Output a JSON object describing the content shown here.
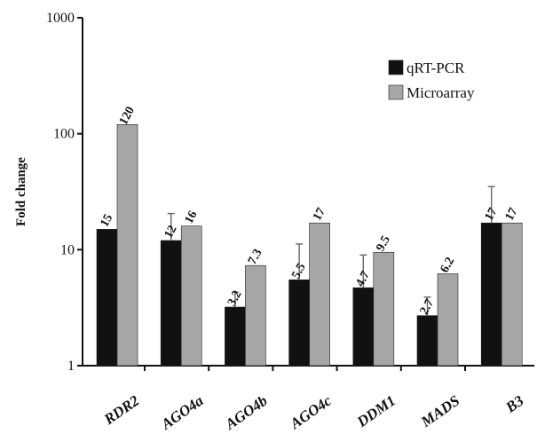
{
  "chart_data": {
    "type": "bar",
    "ylabel": "Fold change",
    "xlabel": "",
    "yscale": "log",
    "ylim": [
      1,
      1000
    ],
    "yticks": [
      1,
      10,
      100,
      1000
    ],
    "ytick_labels": [
      "1",
      "10",
      "100",
      "1000"
    ],
    "legend_position": "top-right",
    "categories": [
      "RDR2",
      "AGO4a",
      "AGO4b",
      "AGO4c",
      "DDM1",
      "MADS",
      "B3"
    ],
    "series": [
      {
        "name": "qRT-PCR",
        "color": "#111111",
        "values": [
          15,
          12,
          3.2,
          5.5,
          4.7,
          2.7,
          17
        ],
        "labels": [
          "15",
          "12",
          "3.2",
          "5.5",
          "4.7",
          "2.7",
          "17"
        ],
        "error_upper": [
          null,
          20.5,
          4.3,
          11.2,
          9.0,
          3.9,
          35
        ]
      },
      {
        "name": "Microarray",
        "color": "#a6a6a6",
        "values": [
          120,
          16,
          7.3,
          17,
          9.5,
          6.2,
          17
        ],
        "labels": [
          "120",
          "16",
          "7.3",
          "17",
          "9.5",
          "6.2",
          "17"
        ]
      }
    ]
  }
}
